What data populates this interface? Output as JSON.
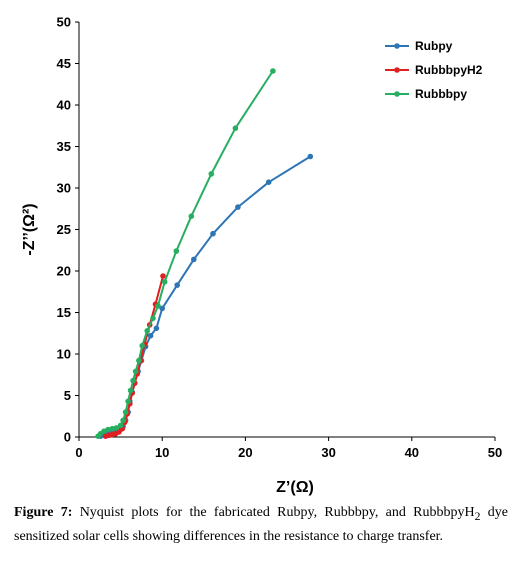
{
  "chart_data": {
    "type": "line",
    "title": "",
    "xlabel": "Z’(Ω)",
    "ylabel": "-Z’’(Ω²)",
    "xlim": [
      0,
      50
    ],
    "ylim": [
      0,
      50
    ],
    "xticks": [
      0,
      10,
      20,
      30,
      40,
      50
    ],
    "yticks": [
      0,
      5,
      10,
      15,
      20,
      25,
      30,
      35,
      40,
      45,
      50
    ],
    "grid": false,
    "legend_position": "top-right",
    "series": [
      {
        "name": "Rubpy",
        "color": "#2e75b6",
        "points": [
          [
            2.6,
            0.1
          ],
          [
            3.0,
            0.3
          ],
          [
            3.5,
            0.5
          ],
          [
            4.0,
            0.6
          ],
          [
            4.5,
            0.7
          ],
          [
            5.0,
            0.9
          ],
          [
            5.3,
            1.3
          ],
          [
            5.6,
            2.0
          ],
          [
            5.9,
            3.0
          ],
          [
            6.1,
            4.3
          ],
          [
            6.4,
            5.4
          ],
          [
            6.7,
            6.5
          ],
          [
            7.1,
            7.9
          ],
          [
            7.5,
            9.2
          ],
          [
            8.0,
            10.9
          ],
          [
            8.6,
            12.2
          ],
          [
            9.3,
            13.1
          ],
          [
            10.0,
            15.5
          ],
          [
            11.8,
            18.3
          ],
          [
            13.8,
            21.4
          ],
          [
            16.1,
            24.5
          ],
          [
            19.1,
            27.7
          ],
          [
            22.8,
            30.7
          ],
          [
            27.8,
            33.8
          ]
        ]
      },
      {
        "name": "RubbbpyH2",
        "color": "#e02020",
        "points": [
          [
            3.2,
            0.1
          ],
          [
            3.6,
            0.2
          ],
          [
            4.0,
            0.3
          ],
          [
            4.4,
            0.4
          ],
          [
            4.8,
            0.6
          ],
          [
            5.2,
            1.0
          ],
          [
            5.5,
            1.8
          ],
          [
            5.8,
            2.8
          ],
          [
            6.1,
            4.0
          ],
          [
            6.4,
            5.3
          ],
          [
            6.7,
            6.5
          ],
          [
            7.0,
            7.6
          ],
          [
            7.4,
            9.2
          ],
          [
            7.9,
            11.2
          ],
          [
            8.5,
            13.5
          ],
          [
            9.2,
            16.0
          ],
          [
            10.1,
            19.4
          ]
        ]
      },
      {
        "name": "Rubbbpy",
        "color": "#27ae60",
        "points": [
          [
            2.3,
            0.1
          ],
          [
            2.6,
            0.4
          ],
          [
            3.0,
            0.7
          ],
          [
            3.5,
            0.9
          ],
          [
            4.0,
            1.0
          ],
          [
            4.5,
            1.1
          ],
          [
            5.0,
            1.4
          ],
          [
            5.3,
            2.0
          ],
          [
            5.6,
            3.0
          ],
          [
            5.9,
            4.3
          ],
          [
            6.2,
            5.6
          ],
          [
            6.5,
            6.8
          ],
          [
            6.8,
            7.9
          ],
          [
            7.2,
            9.2
          ],
          [
            7.6,
            11.0
          ],
          [
            8.2,
            12.8
          ],
          [
            8.9,
            14.3
          ],
          [
            9.5,
            15.8
          ],
          [
            10.3,
            18.7
          ],
          [
            11.7,
            22.4
          ],
          [
            13.5,
            26.6
          ],
          [
            15.9,
            31.7
          ],
          [
            18.8,
            37.2
          ],
          [
            23.3,
            44.1
          ]
        ]
      }
    ]
  },
  "caption": {
    "label": "Figure 7:",
    "text": "Nyquist plots for the fabricated Rubpy, Rubbbpy, and RubbbpyH",
    "subscript": "2",
    "text_end": "dye sensitized solar cells showing differences in the resistance to charge transfer."
  }
}
